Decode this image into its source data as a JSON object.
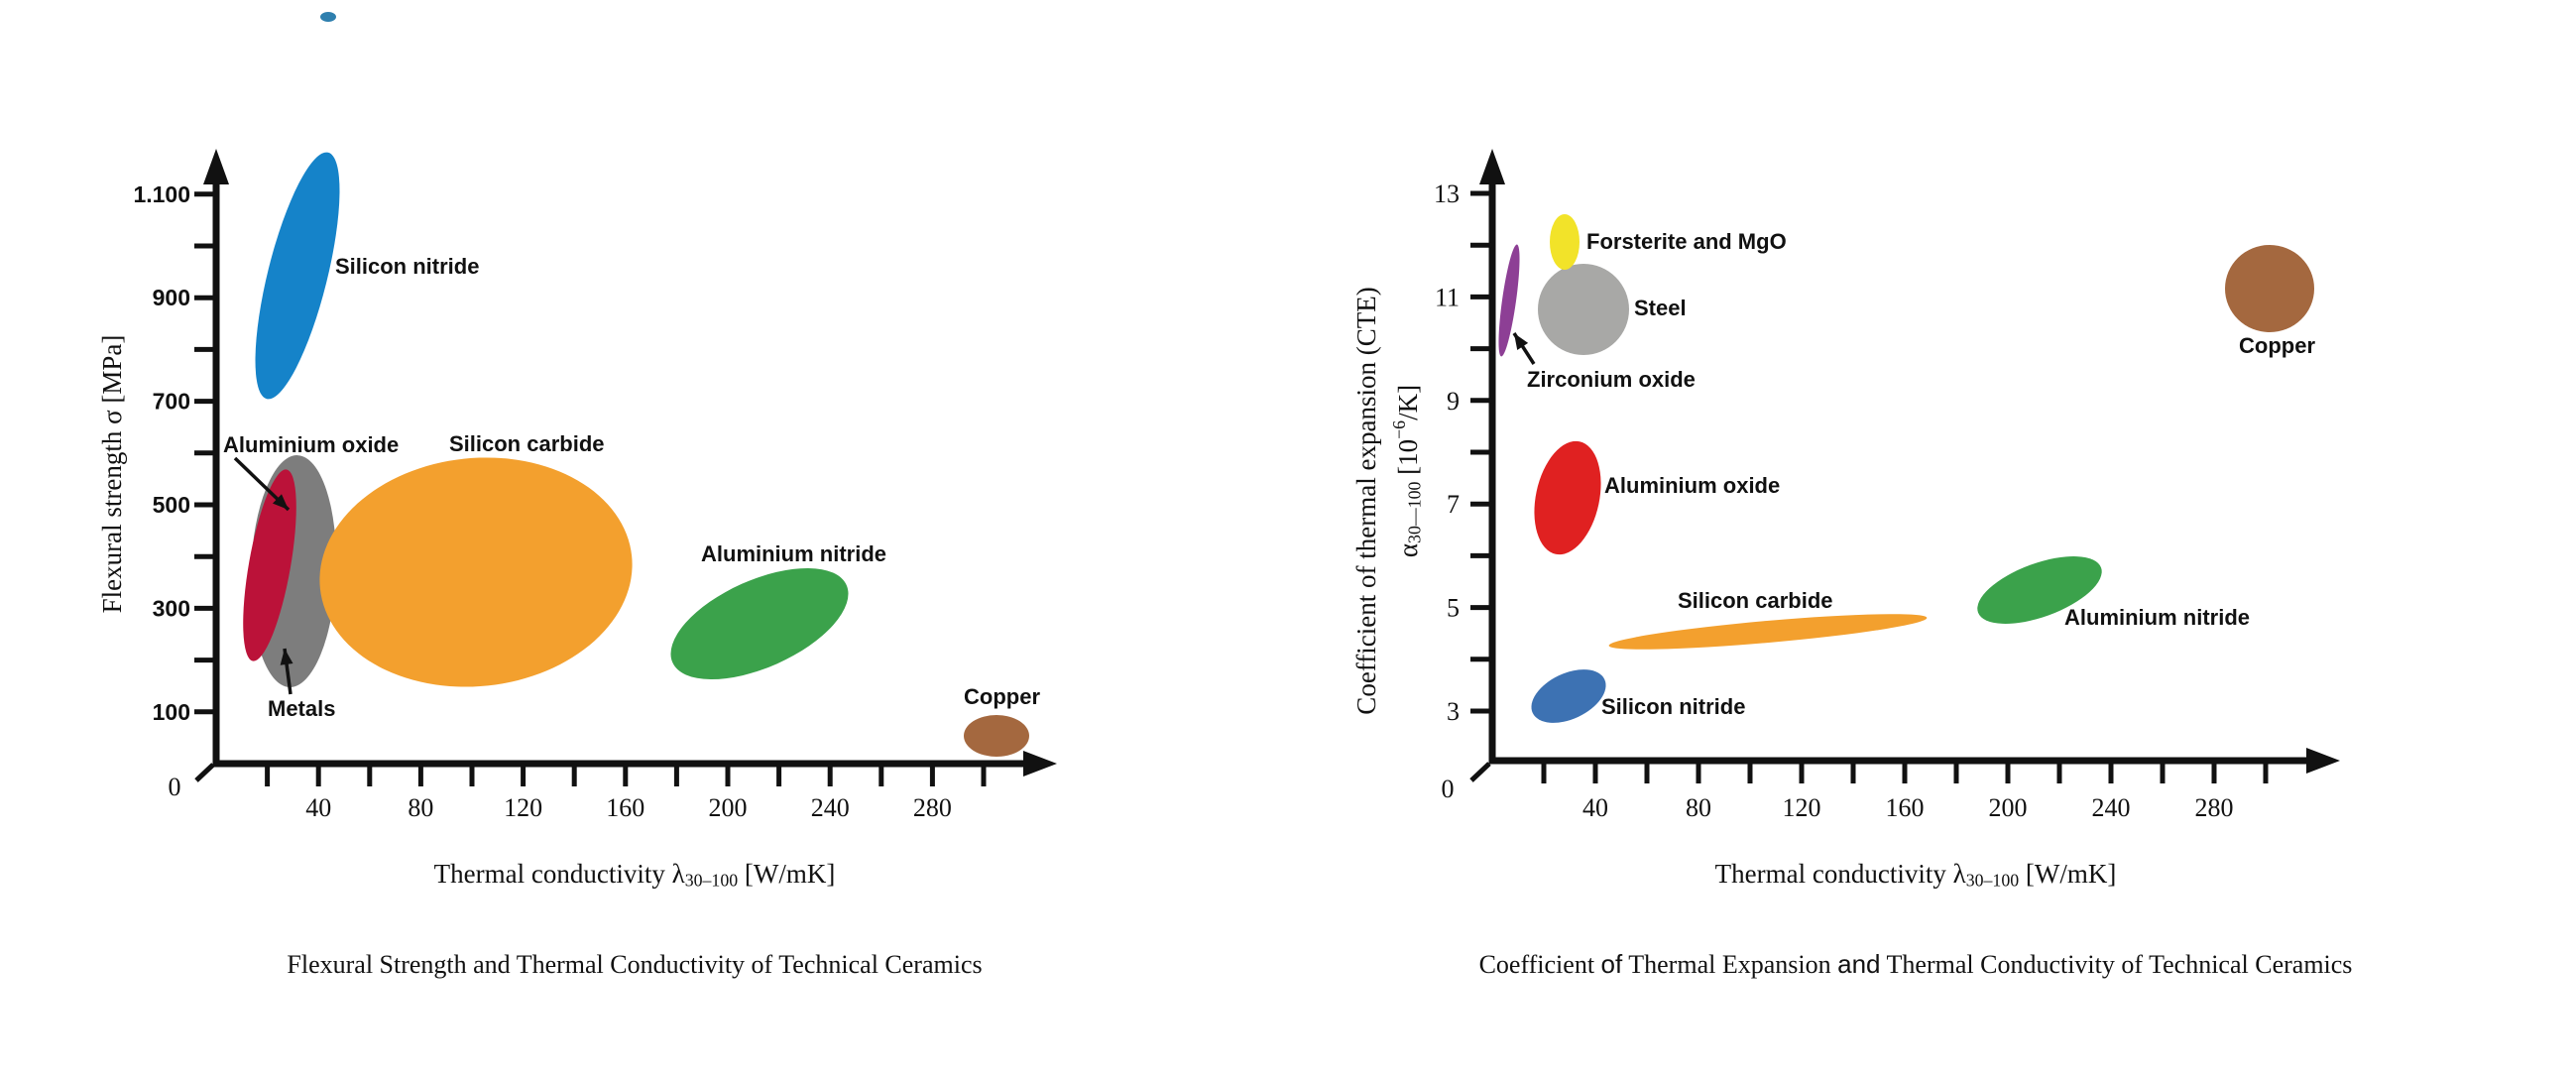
{
  "figure": {
    "background": "#ffffff",
    "artifact_dot_color": "#2e7fae"
  },
  "chart_data": [
    {
      "type": "scatter",
      "title": "Flexural Strength and Thermal Conductivity of Technical Ceramics",
      "caption_parts": [
        {
          "t": "Flexural Strength and Thermal Conductivity of Technical Ceramics"
        }
      ],
      "x_axis": {
        "title_parts": [
          {
            "t": "Thermal conductivity λ"
          },
          {
            "t": "30–100",
            "sub": true
          },
          {
            "t": " [W/mK]"
          }
        ],
        "range": [
          0,
          310
        ],
        "tick_values": [
          20,
          40,
          60,
          80,
          100,
          120,
          140,
          160,
          180,
          200,
          220,
          240,
          260,
          280,
          300
        ],
        "tick_labels": [
          {
            "v": 40,
            "t": "40"
          },
          {
            "v": 80,
            "t": "80"
          },
          {
            "v": 120,
            "t": "120"
          },
          {
            "v": 160,
            "t": "160"
          },
          {
            "v": 200,
            "t": "200"
          },
          {
            "v": 240,
            "t": "240"
          },
          {
            "v": 280,
            "t": "280"
          }
        ],
        "origin_label": "0",
        "grid": false
      },
      "y_axis": {
        "title_lines": [
          [
            {
              "t": "Flexural strength σ [MPa]"
            }
          ]
        ],
        "range": [
          0,
          1190
        ],
        "tick_values": [
          100,
          200,
          300,
          400,
          500,
          600,
          700,
          800,
          900,
          1000,
          1100
        ],
        "tick_labels": [
          {
            "v": 100,
            "t": "100"
          },
          {
            "v": 300,
            "t": "300"
          },
          {
            "v": 500,
            "t": "500"
          },
          {
            "v": 700,
            "t": "700"
          },
          {
            "v": 900,
            "t": "900"
          },
          {
            "v": 1100,
            "t": "1.100"
          }
        ]
      },
      "series": [
        {
          "name": "Silicon nitride",
          "color": "#1583c9",
          "x": 32,
          "y": 945,
          "x_range": [
            13,
            50
          ],
          "y_range": [
            700,
            1190
          ]
        },
        {
          "name": "Aluminium oxide",
          "color": "#bb1239",
          "x": 21,
          "y": 385,
          "x_range": [
            10,
            32
          ],
          "y_range": [
            200,
            565
          ]
        },
        {
          "name": "Metals",
          "color": "#7d7d7d",
          "x": 30,
          "y": 372,
          "x_range": [
            14,
            47
          ],
          "y_range": [
            150,
            600
          ]
        },
        {
          "name": "Silicon carbide",
          "color": "#f3a02e",
          "x": 105,
          "y": 370,
          "x_range": [
            50,
            164
          ],
          "y_range": [
            145,
            595
          ]
        },
        {
          "name": "Aluminium nitride",
          "color": "#3ba24b",
          "x": 212,
          "y": 271,
          "x_range": [
            180,
            244
          ],
          "y_range": [
            170,
            375
          ]
        },
        {
          "name": "Copper",
          "color": "#a4683f",
          "x": 305,
          "y": 54,
          "x_range": [
            293,
            318
          ],
          "y_range": [
            15,
            95
          ]
        }
      ]
    },
    {
      "type": "scatter",
      "title": "Coefficient of Thermal Expansion and Thermal Conductivity of Technical Ceramics",
      "caption_parts": [
        {
          "t": "Coefficient "
        },
        {
          "t": "of",
          "sans": true
        },
        {
          "t": "  Thermal Expansion "
        },
        {
          "t": "and",
          "sans": true
        },
        {
          "t": " Thermal Conductivity of Technical Ceramics"
        }
      ],
      "x_axis": {
        "title_parts": [
          {
            "t": "Thermal conductivity λ"
          },
          {
            "t": "30–100",
            "sub": true
          },
          {
            "t": " [W/mK]"
          }
        ],
        "range": [
          0,
          310
        ],
        "tick_values": [
          20,
          40,
          60,
          80,
          100,
          120,
          140,
          160,
          180,
          200,
          220,
          240,
          260,
          280,
          300
        ],
        "tick_labels": [
          {
            "v": 40,
            "t": "40"
          },
          {
            "v": 80,
            "t": "80"
          },
          {
            "v": 120,
            "t": "120"
          },
          {
            "v": 160,
            "t": "160"
          },
          {
            "v": 200,
            "t": "200"
          },
          {
            "v": 240,
            "t": "240"
          },
          {
            "v": 280,
            "t": "280"
          }
        ],
        "origin_label": "0",
        "grid": false
      },
      "y_axis": {
        "title_lines": [
          [
            {
              "t": "Coefficient of thermal expansion (CTE)"
            }
          ],
          [
            {
              "t": "α"
            },
            {
              "t": "30—100",
              "sub": true
            },
            {
              "t": " [10"
            },
            {
              "t": "−6",
              "sup": true
            },
            {
              "t": "/K]"
            }
          ]
        ],
        "range": [
          0,
          13.5
        ],
        "tick_values": [
          3,
          4,
          5,
          6,
          7,
          8,
          9,
          10,
          11,
          12,
          13
        ],
        "tick_labels": [
          {
            "v": 3,
            "t": "3"
          },
          {
            "v": 5,
            "t": "5"
          },
          {
            "v": 7,
            "t": "7"
          },
          {
            "v": 9,
            "t": "9"
          },
          {
            "v": 11,
            "t": "11"
          },
          {
            "v": 13,
            "t": "13"
          }
        ]
      },
      "series": [
        {
          "name": "Zirconium oxide",
          "color": "#8d3f95",
          "x": 6.5,
          "y": 10.9,
          "x_range": [
            3,
            10
          ],
          "y_range": [
            9.8,
            12.0
          ]
        },
        {
          "name": "Forsterite and MgO",
          "color": "#f2e329",
          "x": 28,
          "y": 12.1,
          "x_range": [
            22,
            34
          ],
          "y_range": [
            11.5,
            12.6
          ]
        },
        {
          "name": "Steel",
          "color": "#a8a8a6",
          "x": 35,
          "y": 10.7,
          "x_range": [
            18,
            53
          ],
          "y_range": [
            9.8,
            11.7
          ]
        },
        {
          "name": "Aluminium oxide",
          "color": "#e02121",
          "x": 29,
          "y": 7.1,
          "x_range": [
            17,
            42
          ],
          "y_range": [
            6.0,
            8.2
          ]
        },
        {
          "name": "Silicon carbide",
          "color": "#f3a02e",
          "x": 107,
          "y": 4.5,
          "x_range": [
            46,
            169
          ],
          "y_range": [
            4.2,
            4.8
          ]
        },
        {
          "name": "Silicon nitride",
          "color": "#3d72b3",
          "x": 29,
          "y": 3.3,
          "x_range": [
            15,
            44
          ],
          "y_range": [
            2.8,
            3.9
          ]
        },
        {
          "name": "Aluminium nitride",
          "color": "#3ba24b",
          "x": 213,
          "y": 5.3,
          "x_range": [
            189,
            238
          ],
          "y_range": [
            4.6,
            6.1
          ]
        },
        {
          "name": "Copper",
          "color": "#a4683f",
          "x": 302,
          "y": 11.2,
          "x_range": [
            286,
            319
          ],
          "y_range": [
            10.3,
            12.0
          ]
        }
      ]
    }
  ]
}
